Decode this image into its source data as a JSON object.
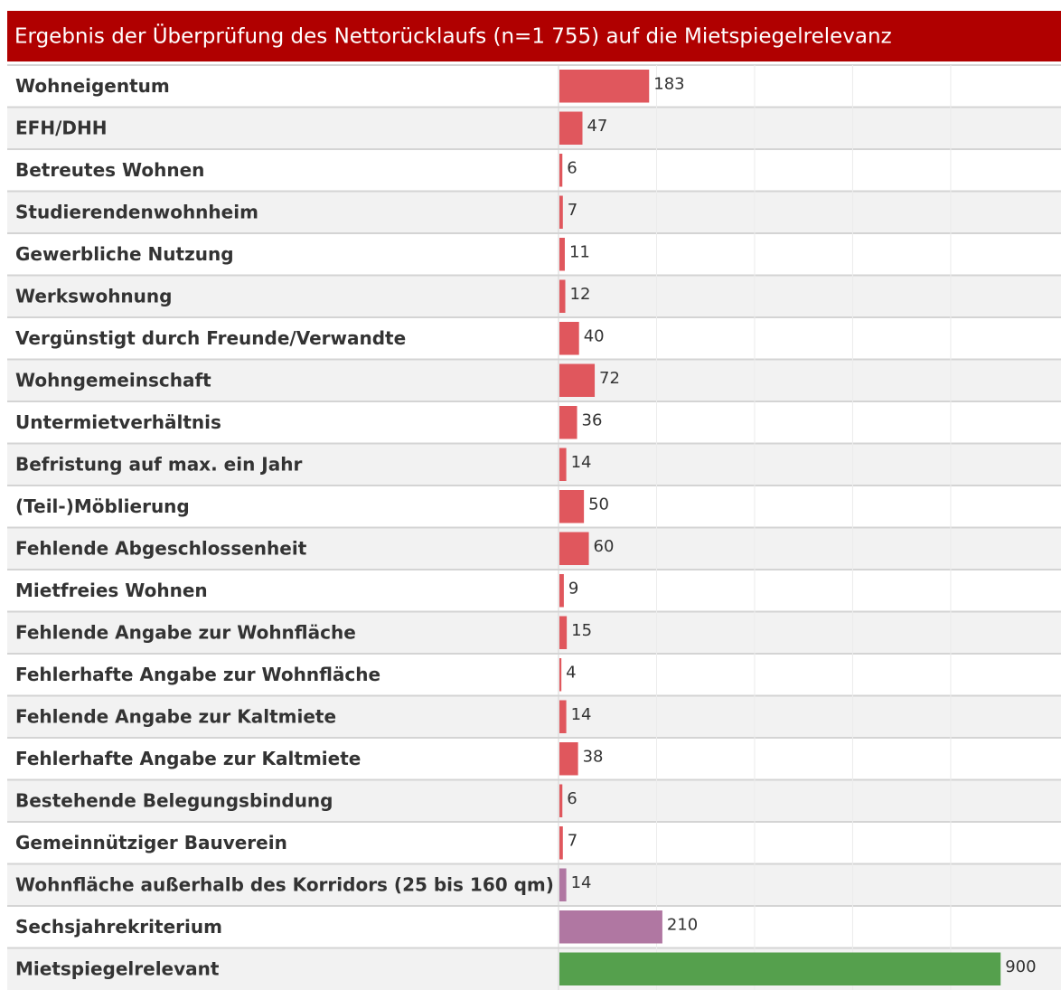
{
  "chart_data": {
    "type": "hbar",
    "title": "Ergebnis der Überprüfung des Nettorücklaufs (n=1 755) auf die Mietspiegelrelevanz",
    "categories": [
      "Wohneigentum",
      "EFH/DHH",
      "Betreutes Wohnen",
      "Studierendenwohnheim",
      "Gewerbliche Nutzung",
      "Werkswohnung",
      "Vergünstigt durch Freunde/Verwandte",
      "Wohngemeinschaft",
      "Untermietverhältnis",
      "Befristung auf max. ein Jahr",
      "(Teil-)Möblierung",
      "Fehlende Abgeschlossenheit",
      "Mietfreies Wohnen",
      "Fehlende Angabe zur Wohnfläche",
      "Fehlerhafte Angabe zur Wohnfläche",
      "Fehlende Angabe zur Kaltmiete",
      "Fehlerhafte Angabe zur Kaltmiete",
      "Bestehende Belegungsbindung",
      "Gemeinnütziger Bauverein",
      "Wohnfläche außerhalb des Korridors (25 bis 160 qm)",
      "Sechsjahrekriterium",
      "Mietspiegelrelevant"
    ],
    "values": [
      183,
      47,
      6,
      7,
      11,
      12,
      40,
      72,
      36,
      14,
      50,
      60,
      9,
      15,
      4,
      14,
      38,
      6,
      7,
      14,
      210,
      900
    ],
    "colors": [
      "#e0575d",
      "#e0575d",
      "#e0575d",
      "#e0575d",
      "#e0575d",
      "#e0575d",
      "#e0575d",
      "#e0575d",
      "#e0575d",
      "#e0575d",
      "#e0575d",
      "#e0575d",
      "#e0575d",
      "#e0575d",
      "#e0575d",
      "#e0575d",
      "#e0575d",
      "#e0575d",
      "#e0575d",
      "#b077a2",
      "#b077a2",
      "#55a04d"
    ],
    "xlim": [
      0,
      1025
    ],
    "xticks": [
      200,
      400,
      600,
      800
    ],
    "grid": true
  }
}
